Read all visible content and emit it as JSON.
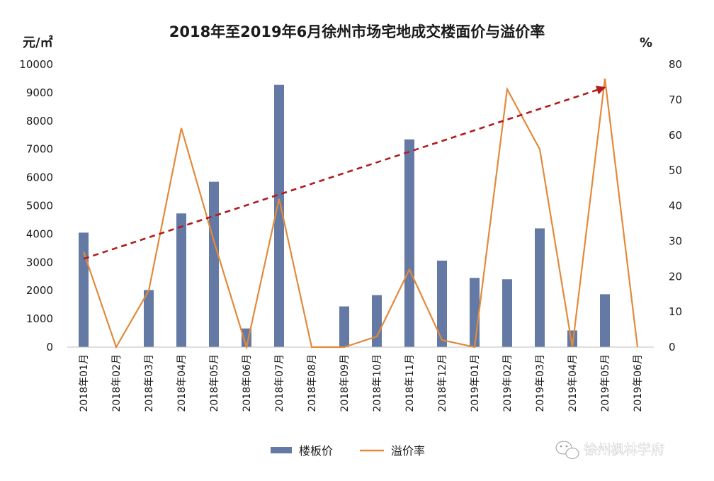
{
  "chart_data": {
    "type": "bar",
    "title": "2018年至2019年6月徐州市场宅地成交楼面价与溢价率",
    "ylabel_left": "元/㎡",
    "ylabel_right": "%",
    "ylim_left": [
      0,
      10000
    ],
    "ylim_right": [
      0,
      80
    ],
    "yticks_left": [
      "0",
      "1000",
      "2000",
      "3000",
      "4000",
      "5000",
      "6000",
      "7000",
      "8000",
      "9000",
      "10000"
    ],
    "yticks_right": [
      "0",
      "10",
      "20",
      "30",
      "40",
      "50",
      "60",
      "70",
      "80"
    ],
    "categories": [
      "2018年01月",
      "2018年02月",
      "2018年03月",
      "2018年04月",
      "2018年05月",
      "2018年06月",
      "2018年07月",
      "2018年08月",
      "2018年09月",
      "2018年10月",
      "2018年11月",
      "2018年12月",
      "2019年01月",
      "2019年02月",
      "2019年03月",
      "2019年04月",
      "2019年05月",
      "2019年06月"
    ],
    "series": [
      {
        "name": "楼板价",
        "type": "bar",
        "axis": "left",
        "color": "#6479a3",
        "values": [
          4050,
          0,
          2020,
          4730,
          5850,
          660,
          9280,
          0,
          1440,
          1840,
          7350,
          3060,
          2450,
          2400,
          4200,
          590,
          1870,
          0
        ]
      },
      {
        "name": "溢价率",
        "type": "line",
        "axis": "right",
        "color": "#e28a3a",
        "values": [
          27,
          0,
          16,
          62,
          30,
          0,
          42,
          0,
          0,
          3,
          22,
          2,
          0,
          73,
          56,
          0,
          76,
          0
        ]
      }
    ],
    "trend": {
      "color": "#b01c1c",
      "from": {
        "category": "2018年01月",
        "value": 25
      },
      "to": {
        "category": "2019年05月",
        "value": 73.5
      }
    },
    "legend_position": "bottom",
    "grid": false
  },
  "watermark": {
    "text": "徐州枫林学府",
    "icon": "wechat-icon"
  }
}
